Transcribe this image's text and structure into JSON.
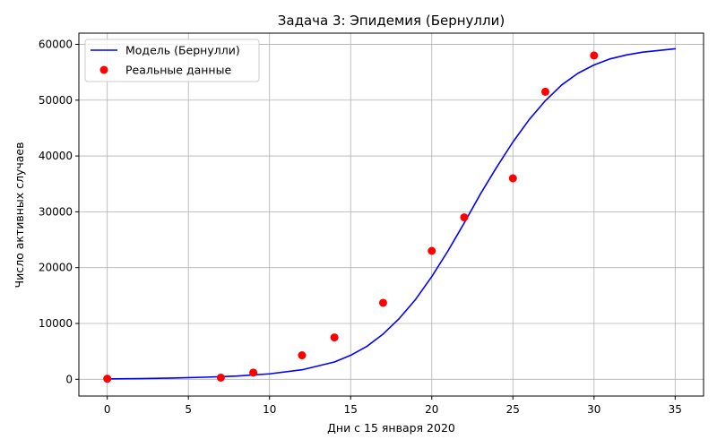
{
  "chart_data": {
    "type": "line",
    "title": "Задача 3: Эпидемия (Бернулли)",
    "xlabel": "Дни с 15 января 2020",
    "ylabel": "Число активных случаев",
    "xlim": [
      -1.75,
      36.75
    ],
    "ylim": [
      -3000,
      62000
    ],
    "xticks": [
      0,
      5,
      10,
      15,
      20,
      25,
      30,
      35
    ],
    "xtick_labels": [
      "0",
      "5",
      "10",
      "15",
      "20",
      "25",
      "30",
      "35"
    ],
    "yticks": [
      0,
      10000,
      20000,
      30000,
      40000,
      50000,
      60000
    ],
    "ytick_labels": [
      "0",
      "10000",
      "20000",
      "30000",
      "40000",
      "50000",
      "60000"
    ],
    "grid": true,
    "legend_position": "top-left",
    "series": [
      {
        "name": "Модель (Бернулли)",
        "kind": "line",
        "color": "#0000ff",
        "x": [
          0,
          2,
          4,
          6,
          8,
          10,
          12,
          14,
          15,
          16,
          17,
          18,
          19,
          20,
          21,
          22,
          23,
          24,
          25,
          26,
          27,
          28,
          29,
          30,
          31,
          32,
          33,
          34,
          35
        ],
        "y": [
          60,
          120,
          220,
          370,
          580,
          970,
          1700,
          3100,
          4300,
          5900,
          8100,
          10900,
          14300,
          18400,
          23000,
          28000,
          33200,
          38000,
          42500,
          46500,
          49900,
          52700,
          54800,
          56300,
          57400,
          58100,
          58600,
          58900,
          59200
        ]
      },
      {
        "name": "Реальные данные",
        "kind": "scatter",
        "color": "#ff0000",
        "x": [
          0,
          7,
          9,
          12,
          14,
          17,
          20,
          22,
          25,
          27,
          30
        ],
        "y": [
          100,
          300,
          1200,
          4300,
          7500,
          13700,
          23000,
          29000,
          36000,
          51500,
          58000
        ]
      }
    ]
  }
}
